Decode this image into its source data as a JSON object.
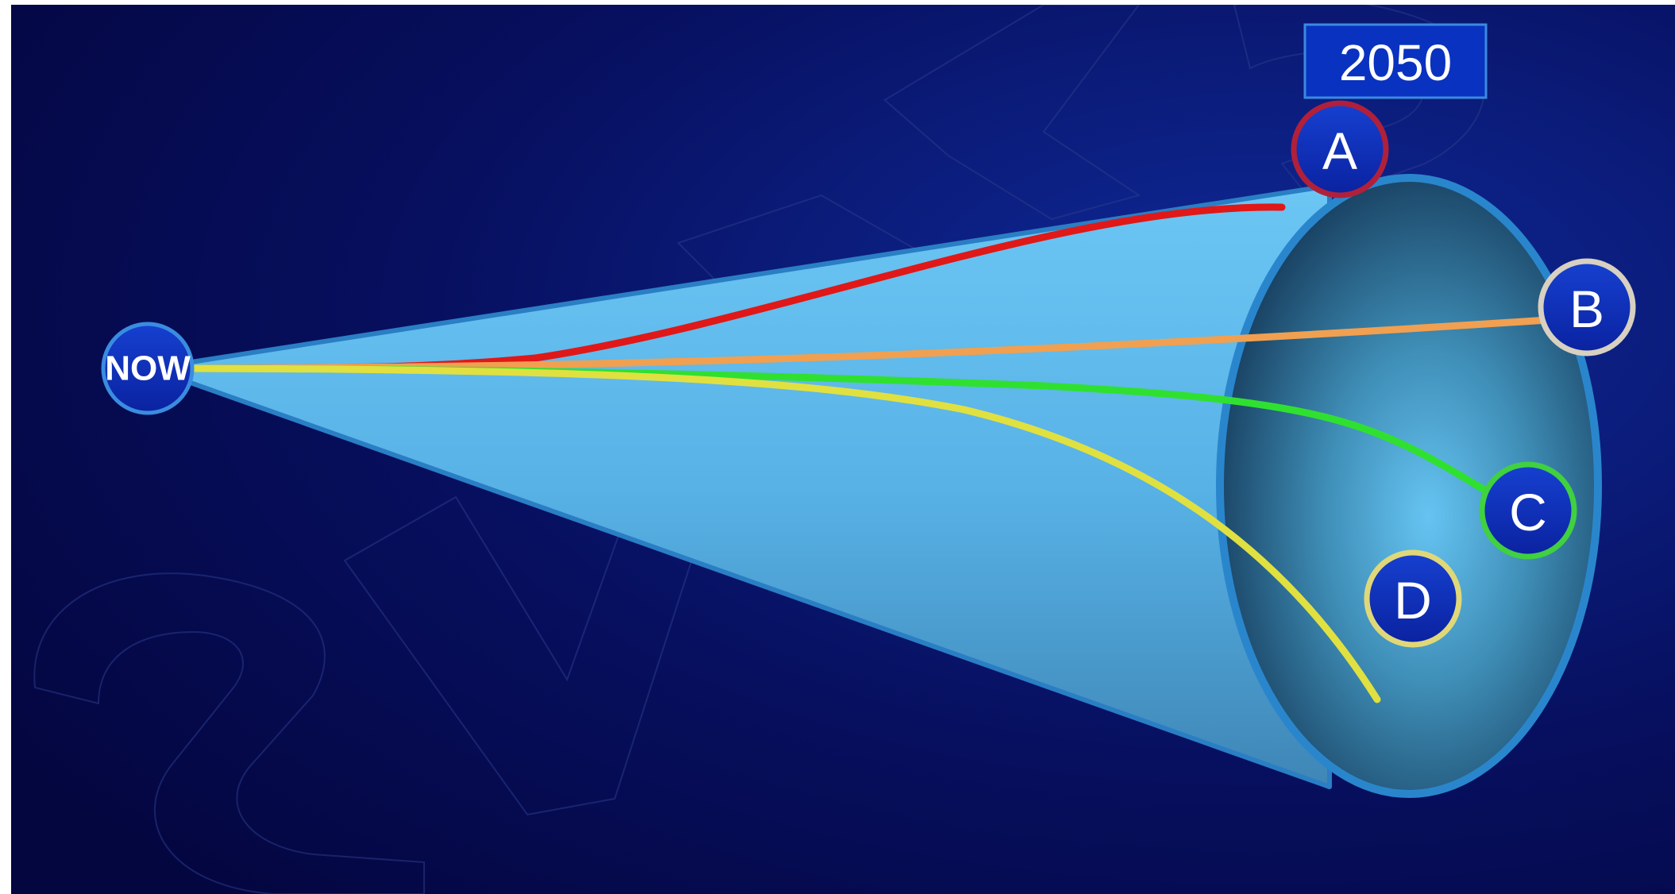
{
  "start_node": {
    "label": "NOW"
  },
  "horizon": {
    "year": "2050"
  },
  "futures": [
    {
      "label": "A",
      "path_color": "#e01818",
      "ring_color": "#b0203a"
    },
    {
      "label": "B",
      "path_color": "#f0a050",
      "ring_color": "#d8d0c0"
    },
    {
      "label": "C",
      "path_color": "#30e030",
      "ring_color": "#40d040"
    },
    {
      "label": "D",
      "path_color": "#e0e040",
      "ring_color": "#e0d878"
    }
  ],
  "colors": {
    "background": "#05084a",
    "cone": "#5ab6ea",
    "node_fill": "#0a2ab8",
    "year_box": "#0a32c0"
  }
}
